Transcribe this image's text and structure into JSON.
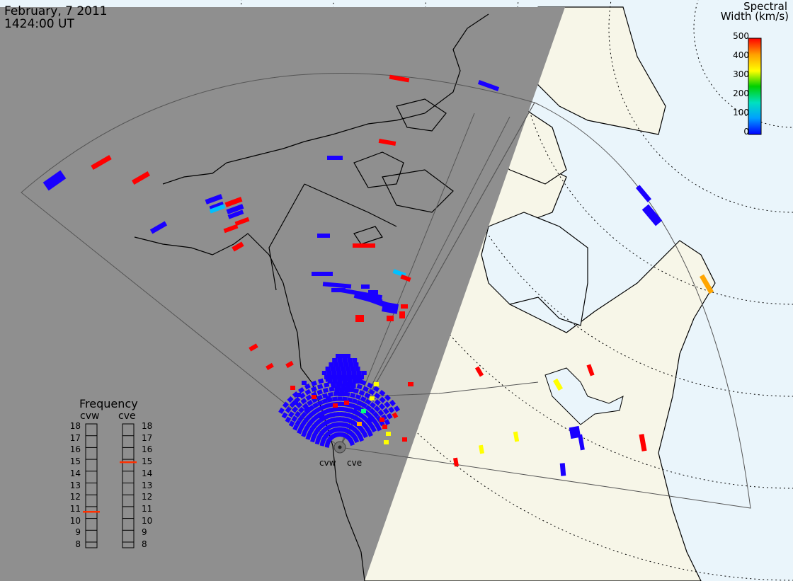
{
  "header": {
    "date": "February, 7 2011",
    "time": "1424:00 UT"
  },
  "legend": {
    "title_line1": "Spectral",
    "title_line2": "Width (km/s)",
    "ticks": [
      "500",
      "400",
      "300",
      "200",
      "100",
      "0"
    ],
    "colormap": [
      "#0000ff",
      "#00a0ff",
      "#00e0c0",
      "#00d000",
      "#ffff00",
      "#ffa000",
      "#ff0000"
    ],
    "range": [
      0,
      500
    ]
  },
  "frequency_panel": {
    "title": "Frequency",
    "cvw_label": "cvw",
    "cve_label": "cve",
    "ticks": [
      "18",
      "17",
      "16",
      "15",
      "14",
      "13",
      "12",
      "11",
      "10",
      "9",
      "8"
    ],
    "cvw_value_mhz": 10.8,
    "cve_value_mhz": 15.0,
    "indicator_color": "#ff3000"
  },
  "radars": {
    "west_label": "cvw",
    "east_label": "cve"
  },
  "colors": {
    "night": "#8f8f8f",
    "land_day": "#f7f6e8",
    "ocean_day": "#eaf5fb",
    "coast": "#000000",
    "fov_outline": "#555555"
  }
}
